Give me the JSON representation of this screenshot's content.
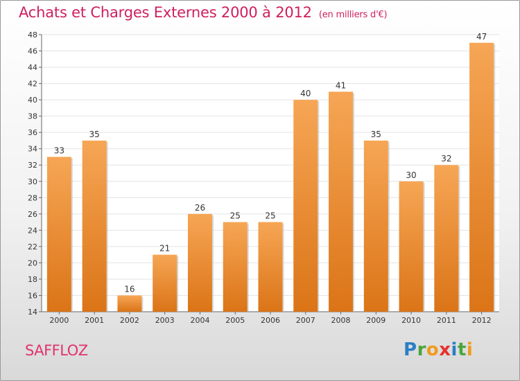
{
  "title": "Achats et Charges Externes 2000 à 2012",
  "subtitle": "(en milliers d'€)",
  "commune": "SAFFLOZ",
  "logo": {
    "letters": [
      "P",
      "r",
      "o",
      "x",
      "i",
      "t",
      "i"
    ],
    "colors": [
      "#2a7fc6",
      "#4aa53c",
      "#f29a1e",
      "#e8322e",
      "#2a7fc6",
      "#4aa53c",
      "#f29a1e"
    ]
  },
  "colors": {
    "title": "#ce1f5e",
    "bar_light": "#f6a655",
    "bar_dark": "#db7417"
  },
  "chart_data": {
    "type": "bar",
    "categories": [
      "2000",
      "2001",
      "2002",
      "2003",
      "2004",
      "2005",
      "2006",
      "2007",
      "2008",
      "2009",
      "2010",
      "2011",
      "2012"
    ],
    "values": [
      33,
      35,
      16,
      21,
      26,
      25,
      25,
      40,
      41,
      35,
      30,
      32,
      47
    ],
    "ylim": [
      14,
      48
    ],
    "yticks": [
      14,
      16,
      18,
      20,
      22,
      24,
      26,
      28,
      30,
      32,
      34,
      36,
      38,
      40,
      42,
      44,
      46,
      48
    ],
    "grid": true,
    "legend": "none"
  }
}
